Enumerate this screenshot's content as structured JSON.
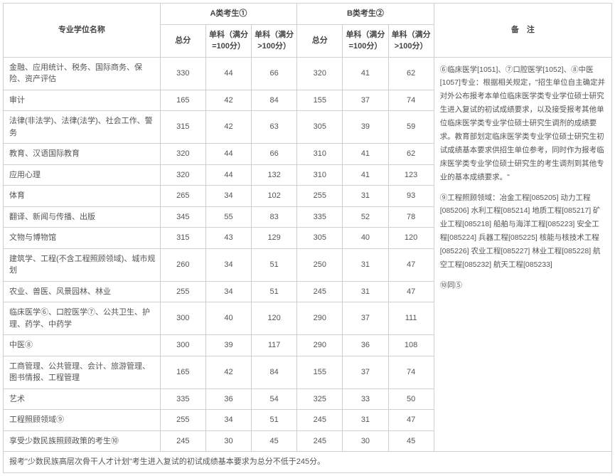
{
  "headers": {
    "major_name": "专业学位名称",
    "group_a": "A类考生①",
    "group_b": "B类考生②",
    "notes": "备　注",
    "total": "总分",
    "single_100": "单科（满分=100分）",
    "single_over_100": "单科（满分>100分）"
  },
  "rows": [
    {
      "name": "金融、应用统计、税务、国际商务、保险、资产评估",
      "a_total": "330",
      "a_s100": "44",
      "a_g100": "66",
      "b_total": "320",
      "b_s100": "41",
      "b_g100": "62"
    },
    {
      "name": "审计",
      "a_total": "165",
      "a_s100": "42",
      "a_g100": "84",
      "b_total": "155",
      "b_s100": "37",
      "b_g100": "74"
    },
    {
      "name": "法律(非法学)、法律(法学)、社会工作、警务",
      "a_total": "315",
      "a_s100": "42",
      "a_g100": "63",
      "b_total": "305",
      "b_s100": "39",
      "b_g100": "59"
    },
    {
      "name": "教育、汉语国际教育",
      "a_total": "320",
      "a_s100": "44",
      "a_g100": "66",
      "b_total": "310",
      "b_s100": "41",
      "b_g100": "62"
    },
    {
      "name": "应用心理",
      "a_total": "320",
      "a_s100": "44",
      "a_g100": "132",
      "b_total": "310",
      "b_s100": "41",
      "b_g100": "123"
    },
    {
      "name": "体育",
      "a_total": "265",
      "a_s100": "34",
      "a_g100": "102",
      "b_total": "255",
      "b_s100": "31",
      "b_g100": "93"
    },
    {
      "name": "翻译、新闻与传播、出版",
      "a_total": "345",
      "a_s100": "55",
      "a_g100": "83",
      "b_total": "335",
      "b_s100": "52",
      "b_g100": "78"
    },
    {
      "name": "文物与博物馆",
      "a_total": "315",
      "a_s100": "43",
      "a_g100": "129",
      "b_total": "305",
      "b_s100": "40",
      "b_g100": "120"
    },
    {
      "name": "建筑学、工程(不含工程照顾领域)、城市规划",
      "a_total": "260",
      "a_s100": "34",
      "a_g100": "51",
      "b_total": "250",
      "b_s100": "31",
      "b_g100": "47"
    },
    {
      "name": "农业、兽医、风景园林、林业",
      "a_total": "255",
      "a_s100": "34",
      "a_g100": "51",
      "b_total": "245",
      "b_s100": "31",
      "b_g100": "47"
    },
    {
      "name": "临床医学⑥、口腔医学⑦、公共卫生、护理、药学、中药学",
      "a_total": "300",
      "a_s100": "40",
      "a_g100": "120",
      "b_total": "290",
      "b_s100": "37",
      "b_g100": "111"
    },
    {
      "name": "中医⑧",
      "a_total": "300",
      "a_s100": "39",
      "a_g100": "117",
      "b_total": "290",
      "b_s100": "36",
      "b_g100": "108"
    },
    {
      "name": "工商管理、公共管理、会计、旅游管理、图书情报、工程管理",
      "a_total": "165",
      "a_s100": "42",
      "a_g100": "84",
      "b_total": "155",
      "b_s100": "37",
      "b_g100": "74"
    },
    {
      "name": "艺术",
      "a_total": "335",
      "a_s100": "36",
      "a_g100": "54",
      "b_total": "325",
      "b_s100": "33",
      "b_g100": "50"
    },
    {
      "name": "工程照顾领域⑨",
      "a_total": "255",
      "a_s100": "34",
      "a_g100": "51",
      "b_total": "245",
      "b_s100": "31",
      "b_g100": "47"
    },
    {
      "name": "享受少数民族照顾政策的考生⑩",
      "a_total": "245",
      "a_s100": "30",
      "a_g100": "45",
      "b_total": "245",
      "b_s100": "30",
      "b_g100": "45"
    }
  ],
  "notes": {
    "block1": "⑥临床医学[1051]、⑦口腔医学[1052]、⑧中医[1057]专业：根据相关规定，\"招生单位自主确定并对外公布报考本单位临床医学类专业学位硕士研究生进入复试的初试成绩要求，以及接受报考其他单位临床医学类专业学位硕士研究生调剂的成绩要求。教育部划定临床医学类专业学位硕士研究生初试成绩基本要求供招生单位参考，同时作为报考临床医学类专业学位硕士研究生的考生调剂到其他专业的基本成绩要求。\"",
    "block2": "⑨工程照顾领域：冶金工程[085205] 动力工程[085206] 水利工程[085214] 地质工程[085217] 矿业工程[085218] 船舶与海洋工程[085223] 安全工程[085224] 兵器工程[085225] 核能与核技术工程[085226] 农业工程[085227] 林业工程[085228] 航空工程[085232] 航天工程[085233]",
    "block3": "⑩同⑤"
  },
  "footer": "报考\"少数民族高层次骨干人才计划\"考生进入复试的初试成绩基本要求为总分不低于245分。",
  "colors": {
    "border": "#d0d0d0",
    "text": "#555555",
    "header_text": "#444444",
    "background": "#ffffff"
  }
}
